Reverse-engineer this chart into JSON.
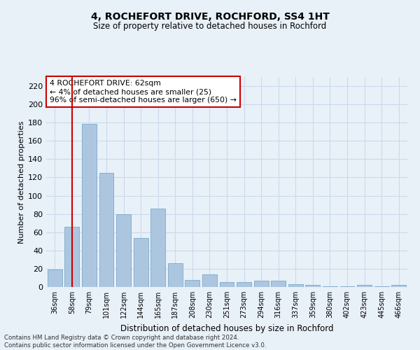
{
  "title": "4, ROCHEFORT DRIVE, ROCHFORD, SS4 1HT",
  "subtitle": "Size of property relative to detached houses in Rochford",
  "xlabel": "Distribution of detached houses by size in Rochford",
  "ylabel": "Number of detached properties",
  "categories": [
    "36sqm",
    "58sqm",
    "79sqm",
    "101sqm",
    "122sqm",
    "144sqm",
    "165sqm",
    "187sqm",
    "208sqm",
    "230sqm",
    "251sqm",
    "273sqm",
    "294sqm",
    "316sqm",
    "337sqm",
    "359sqm",
    "380sqm",
    "402sqm",
    "423sqm",
    "445sqm",
    "466sqm"
  ],
  "values": [
    19,
    66,
    179,
    125,
    80,
    54,
    86,
    26,
    8,
    14,
    5,
    5,
    7,
    7,
    3,
    2,
    1,
    1,
    2,
    1,
    2
  ],
  "bar_color": "#adc6e0",
  "bar_edge_color": "#7aaac8",
  "vline_x": 1,
  "vline_color": "#cc0000",
  "annotation_text": "4 ROCHEFORT DRIVE: 62sqm\n← 4% of detached houses are smaller (25)\n96% of semi-detached houses are larger (650) →",
  "annotation_box_color": "#ffffff",
  "annotation_box_edge": "#cc0000",
  "ylim": [
    0,
    230
  ],
  "yticks": [
    0,
    20,
    40,
    60,
    80,
    100,
    120,
    140,
    160,
    180,
    200,
    220
  ],
  "grid_color": "#c8d8ea",
  "background_color": "#e8f0f8",
  "footer_line1": "Contains HM Land Registry data © Crown copyright and database right 2024.",
  "footer_line2": "Contains public sector information licensed under the Open Government Licence v3.0."
}
